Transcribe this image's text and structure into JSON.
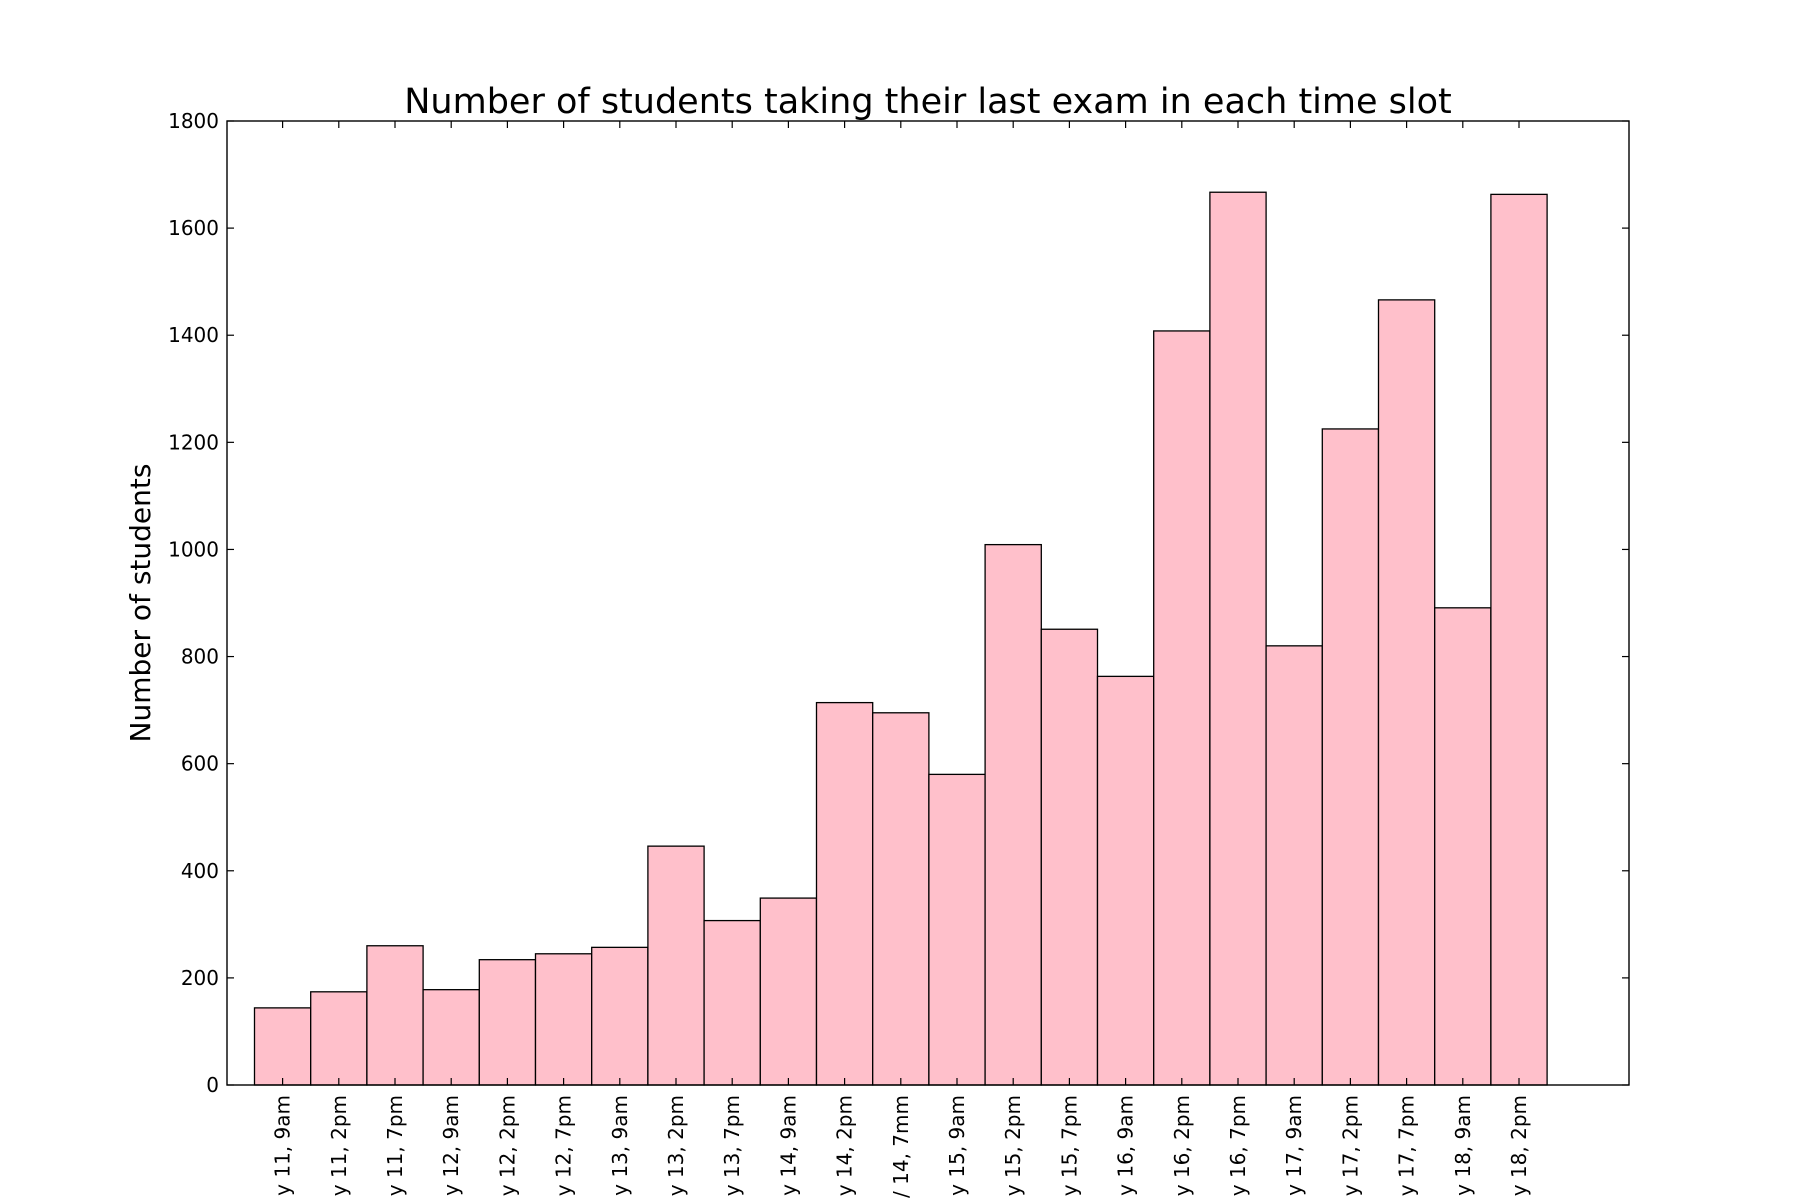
{
  "chart_data": {
    "type": "bar",
    "title": "Number of students taking their last exam in each time slot",
    "xlabel": "",
    "ylabel": "Number of students",
    "ylim": [
      0,
      1800
    ],
    "yticks": [
      "0",
      "200",
      "400",
      "600",
      "800",
      "1000",
      "1200",
      "1400",
      "1600",
      "1800"
    ],
    "grid": false,
    "legend": "none",
    "bar_color": "#ffc0cb",
    "edge_color": "#000000",
    "categories": [
      "y 11, 9am",
      "y 11, 2pm",
      "y 11, 7pm",
      "y 12, 9am",
      "y 12, 2pm",
      "y 12, 7pm",
      "y 13, 9am",
      "y 13, 2pm",
      "y 13, 7pm",
      "y 14, 9am",
      "y 14, 2pm",
      "/ 14, 7mm",
      "y 15, 9am",
      "y 15, 2pm",
      "y 15, 7pm",
      "y 16, 9am",
      "y 16, 2pm",
      "y 16, 7pm",
      "y 17, 9am",
      "y 17, 2pm",
      "y 17, 7pm",
      "y 18, 9am",
      "y 18, 2pm"
    ],
    "values": [
      144,
      174,
      260,
      178,
      234,
      245,
      257,
      446,
      307,
      349,
      714,
      695,
      580,
      1009,
      851,
      763,
      1408,
      1667,
      820,
      1225,
      1466,
      891,
      1663
    ]
  }
}
